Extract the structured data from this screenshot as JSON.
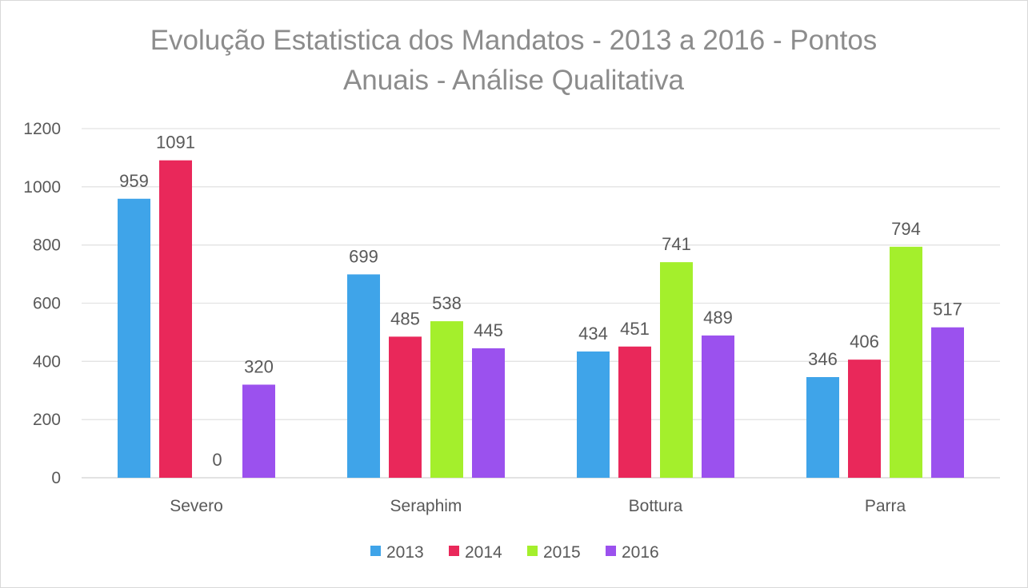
{
  "chart_data": {
    "type": "bar",
    "title_lines": [
      "Evolução Estatistica dos Mandatos - 2013 a 2016 - Pontos",
      "Anuais - Análise Qualitativa"
    ],
    "categories": [
      "Severo",
      "Seraphim",
      "Bottura",
      "Parra"
    ],
    "series": [
      {
        "name": "2013",
        "color": "#3fa4e9",
        "values": [
          959,
          699,
          434,
          346
        ]
      },
      {
        "name": "2014",
        "color": "#e9285a",
        "values": [
          1091,
          485,
          451,
          406
        ]
      },
      {
        "name": "2015",
        "color": "#a4ef2c",
        "values": [
          0,
          538,
          741,
          794
        ]
      },
      {
        "name": "2016",
        "color": "#9b51ee",
        "values": [
          320,
          445,
          489,
          517
        ]
      }
    ],
    "yticks": [
      "0",
      "200",
      "400",
      "600",
      "800",
      "1000",
      "1200"
    ],
    "ylim": [
      0,
      1200
    ],
    "grid": true,
    "legend": "bottom",
    "xlabel": "",
    "ylabel": ""
  }
}
